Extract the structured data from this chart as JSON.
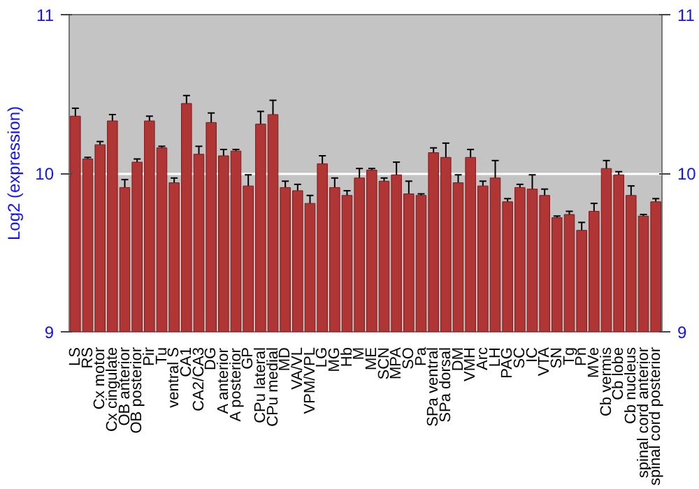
{
  "chart_data": {
    "type": "bar",
    "ylabel": "Log2 (expression)",
    "categories": [
      "LS",
      "RS",
      "Cx motor",
      "Cx cingulate",
      "OB anterior",
      "OB posterior",
      "Pir",
      "Tu",
      "ventral S",
      "CA1",
      "CA2/CA3",
      "DG",
      "A anterior",
      "A posterior",
      "GP",
      "CPu lateral",
      "CPu medial",
      "MD",
      "VA/VL",
      "VPM/VPL",
      "LG",
      "MG",
      "Hb",
      "M",
      "ME",
      "SCN",
      "MPA",
      "SO",
      "Pa",
      "SPa ventral",
      "SPa dorsal",
      "DM",
      "VMH",
      "Arc",
      "LH",
      "PAG",
      "SC",
      "IC",
      "VTA",
      "SN",
      "Tg",
      "Pn",
      "MVe",
      "Cb vermis",
      "Cb lobe",
      "Cb nucleus",
      "spinal cord anterior",
      "spinal cord posterior"
    ],
    "values": [
      10.36,
      10.09,
      10.18,
      10.33,
      9.91,
      10.07,
      10.33,
      10.16,
      9.94,
      10.44,
      10.12,
      10.32,
      10.11,
      10.14,
      9.92,
      10.31,
      10.37,
      9.91,
      9.89,
      9.81,
      10.06,
      9.91,
      9.86,
      9.97,
      10.02,
      9.95,
      9.99,
      9.87,
      9.86,
      10.13,
      10.1,
      9.94,
      10.1,
      9.92,
      9.97,
      9.82,
      9.91,
      9.9,
      9.86,
      9.72,
      9.74,
      9.64,
      9.76,
      10.03,
      9.99,
      9.86,
      9.73,
      9.82
    ],
    "errors": [
      0.05,
      0.01,
      0.02,
      0.04,
      0.05,
      0.02,
      0.03,
      0.01,
      0.03,
      0.05,
      0.05,
      0.06,
      0.04,
      0.01,
      0.07,
      0.08,
      0.09,
      0.04,
      0.04,
      0.05,
      0.05,
      0.06,
      0.03,
      0.06,
      0.01,
      0.02,
      0.08,
      0.08,
      0.01,
      0.03,
      0.09,
      0.05,
      0.05,
      0.03,
      0.11,
      0.02,
      0.02,
      0.09,
      0.04,
      0.01,
      0.02,
      0.05,
      0.05,
      0.05,
      0.02,
      0.06,
      0.01,
      0.02
    ],
    "color": "#b03535",
    "ylim": [
      9,
      11
    ],
    "yticks": [
      9,
      10,
      11
    ],
    "y2lim": [
      9,
      11
    ],
    "y2ticks": [
      9,
      10,
      11
    ],
    "grid": "y"
  }
}
